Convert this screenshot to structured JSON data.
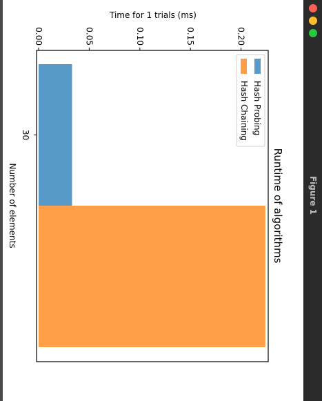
{
  "window": {
    "title": "Figure 1",
    "controls": [
      {
        "name": "close",
        "color": "#ff5f57"
      },
      {
        "name": "minimize",
        "color": "#febc2e"
      },
      {
        "name": "maximize",
        "color": "#28c840"
      }
    ]
  },
  "chart_data": {
    "type": "bar",
    "orientation": "rotated 90° clockwise",
    "title": "Runtime of algorithms",
    "xlabel": "Number of elements",
    "ylabel": "Time for 1 trials (ms)",
    "categories": [
      "30"
    ],
    "series": [
      {
        "name": "Hash Probing",
        "color": "#5799c9",
        "values": [
          0.033
        ]
      },
      {
        "name": "Hash Chaining",
        "color": "#fe9f48",
        "values": [
          0.224
        ]
      }
    ],
    "yticks": [
      "0.00",
      "0.05",
      "0.10",
      "0.15",
      "0.20"
    ],
    "ytick_values": [
      0,
      0.05,
      0.1,
      0.15,
      0.2
    ],
    "ylim": [
      0,
      0.235
    ],
    "legend_position": "upper-left",
    "grid": false
  }
}
